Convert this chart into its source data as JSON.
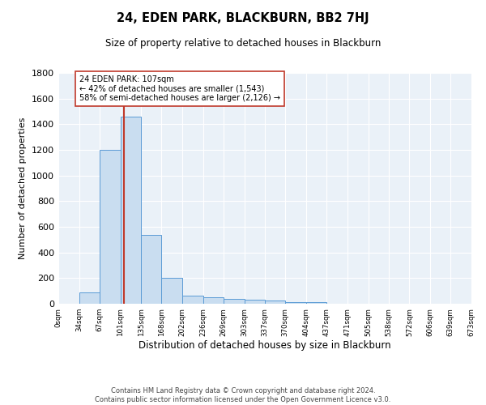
{
  "title": "24, EDEN PARK, BLACKBURN, BB2 7HJ",
  "subtitle": "Size of property relative to detached houses in Blackburn",
  "xlabel": "Distribution of detached houses by size in Blackburn",
  "ylabel": "Number of detached properties",
  "footer_line1": "Contains HM Land Registry data © Crown copyright and database right 2024.",
  "footer_line2": "Contains public sector information licensed under the Open Government Licence v3.0.",
  "annotation_line1": "24 EDEN PARK: 107sqm",
  "annotation_line2": "← 42% of detached houses are smaller (1,543)",
  "annotation_line3": "58% of semi-detached houses are larger (2,126) →",
  "property_sqm": 107,
  "bin_edges": [
    0,
    34,
    67,
    101,
    135,
    168,
    202,
    236,
    269,
    303,
    337,
    370,
    404,
    437,
    471,
    505,
    538,
    572,
    606,
    639,
    673
  ],
  "bar_heights": [
    0,
    90,
    1200,
    1460,
    540,
    205,
    65,
    50,
    40,
    30,
    25,
    10,
    13,
    0,
    0,
    0,
    0,
    0,
    0,
    0
  ],
  "bar_color": "#c9ddf0",
  "bar_edge_color": "#5b9bd5",
  "vline_color": "#c0392b",
  "background_color": "#eaf1f8",
  "ylim": [
    0,
    1800
  ],
  "yticks": [
    0,
    200,
    400,
    600,
    800,
    1000,
    1200,
    1400,
    1600,
    1800
  ]
}
